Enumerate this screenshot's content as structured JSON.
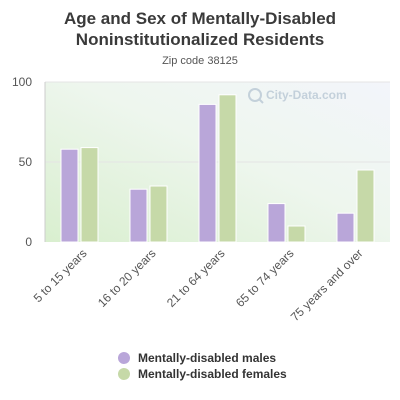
{
  "chart_data": {
    "type": "bar",
    "title_line1": "Age and Sex of Mentally-Disabled",
    "title_line2": "Noninstitutionalized Residents",
    "subtitle": "Zip code 38125",
    "categories": [
      "5 to 15 years",
      "16 to 20 years",
      "21 to 64 years",
      "65 to 74 years",
      "75 years and over"
    ],
    "series": [
      {
        "name": "Mentally-disabled males",
        "color": "#b9a6d9",
        "values": [
          58,
          33,
          86,
          24,
          18
        ]
      },
      {
        "name": "Mentally-disabled females",
        "color": "#c6d9a8",
        "values": [
          59,
          35,
          92,
          10,
          45
        ]
      }
    ],
    "ylim": [
      0,
      100
    ],
    "yticks": [
      0,
      50,
      100
    ],
    "grid": true,
    "legend_position": "bottom",
    "watermark": "City-Data.com"
  }
}
